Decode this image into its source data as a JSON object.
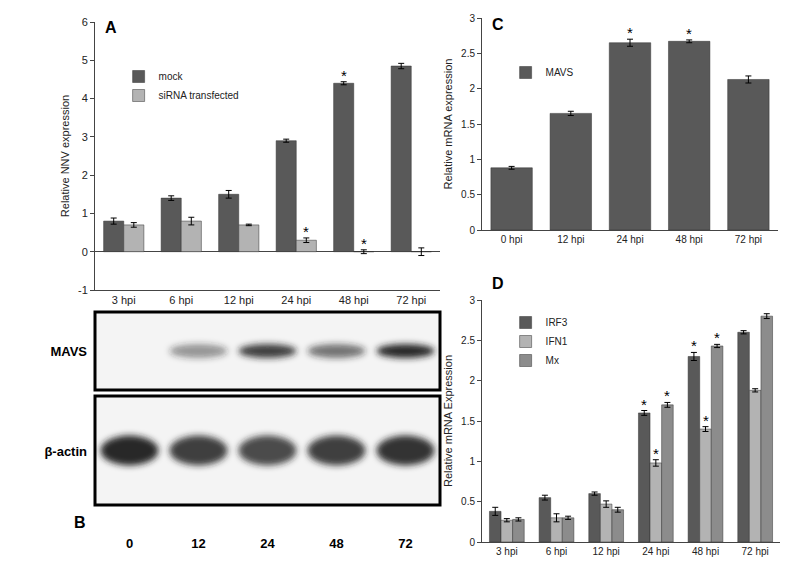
{
  "chart_data": [
    {
      "type": "bar",
      "title": "A",
      "categories": [
        "3 hpi",
        "6 hpi",
        "12 hpi",
        "24 hpi",
        "48 hpi",
        "72 hpi"
      ],
      "series": [
        {
          "name": "mock",
          "color": "#595959",
          "values": [
            0.8,
            1.4,
            1.5,
            2.9,
            4.4,
            4.85
          ],
          "errors": [
            0.08,
            0.06,
            0.1,
            0.04,
            0.04,
            0.07
          ]
        },
        {
          "name": "siRNA transfected",
          "color": "#b3b3b3",
          "values": [
            0.7,
            0.8,
            0.7,
            0.3,
            0.0,
            0.0
          ],
          "errors": [
            0.06,
            0.1,
            0.02,
            0.06,
            0.05,
            0.1
          ]
        }
      ],
      "y_label": "Relative NNV expression",
      "ylim": [
        -1,
        6
      ],
      "yticks": [
        -1,
        0,
        1,
        2,
        3,
        4,
        5,
        6
      ],
      "grid": false,
      "legend": "upper left",
      "annotations": [
        {
          "x": "48 hpi",
          "series": "mock",
          "text": "*"
        },
        {
          "x": "24 hpi",
          "series": "siRNA transfected",
          "text": "*"
        },
        {
          "x": "48 hpi",
          "series": "siRNA transfected",
          "text": "*"
        }
      ]
    },
    {
      "type": "bar",
      "title": "C",
      "categories": [
        "0 hpi",
        "12 hpi",
        "24 hpi",
        "48 hpi",
        "72 hpi"
      ],
      "series": [
        {
          "name": "MAVS",
          "color": "#595959",
          "values": [
            0.88,
            1.65,
            2.65,
            2.67,
            2.13
          ],
          "errors": [
            0.02,
            0.03,
            0.05,
            0.02,
            0.05
          ]
        }
      ],
      "y_label": "Relative mRNA expression",
      "ylim": [
        0,
        3
      ],
      "yticks": [
        0,
        0.5,
        1,
        1.5,
        2,
        2.5,
        3
      ],
      "grid": false,
      "legend": "upper left",
      "annotations": [
        {
          "x": "24 hpi",
          "series": "MAVS",
          "text": "*"
        },
        {
          "x": "48 hpi",
          "series": "MAVS",
          "text": "*"
        }
      ]
    },
    {
      "type": "bar",
      "title": "D",
      "categories": [
        "3 hpi",
        "6 hpi",
        "12 hpi",
        "24 hpi",
        "48 hpi",
        "72 hpi"
      ],
      "series": [
        {
          "name": "IRF3",
          "color": "#595959",
          "values": [
            0.38,
            0.55,
            0.6,
            1.6,
            2.3,
            2.6
          ],
          "errors": [
            0.05,
            0.03,
            0.02,
            0.03,
            0.05,
            0.02
          ]
        },
        {
          "name": "IFN1",
          "color": "#b3b3b3",
          "values": [
            0.27,
            0.3,
            0.47,
            0.98,
            1.4,
            1.88
          ],
          "errors": [
            0.02,
            0.05,
            0.04,
            0.04,
            0.03,
            0.02
          ]
        },
        {
          "name": "Mx",
          "color": "#8c8c8c",
          "values": [
            0.28,
            0.3,
            0.4,
            1.7,
            2.43,
            2.8
          ],
          "errors": [
            0.02,
            0.02,
            0.03,
            0.03,
            0.02,
            0.03
          ]
        }
      ],
      "y_label": "Relative mRNA Expression",
      "ylim": [
        0,
        3
      ],
      "yticks": [
        0,
        0.5,
        1,
        1.5,
        2,
        2.5,
        3
      ],
      "grid": false,
      "legend": "upper left",
      "annotations": [
        {
          "x": "24 hpi",
          "series": "IRF3",
          "text": "*"
        },
        {
          "x": "48 hpi",
          "series": "IRF3",
          "text": "*"
        },
        {
          "x": "24 hpi",
          "series": "IFN1",
          "text": "*"
        },
        {
          "x": "48 hpi",
          "series": "IFN1",
          "text": "*"
        },
        {
          "x": "24 hpi",
          "series": "Mx",
          "text": "*"
        },
        {
          "x": "48 hpi",
          "series": "Mx",
          "text": "*"
        }
      ]
    }
  ],
  "blot": {
    "title": "B",
    "lanes": [
      "0",
      "12",
      "24",
      "48",
      "72"
    ],
    "rows": [
      {
        "label": "MAVS",
        "intensity": [
          0,
          0.45,
          0.85,
          0.6,
          0.95
        ]
      },
      {
        "label": "β-actin",
        "intensity": [
          0.95,
          0.85,
          0.8,
          0.85,
          0.9
        ]
      }
    ]
  }
}
